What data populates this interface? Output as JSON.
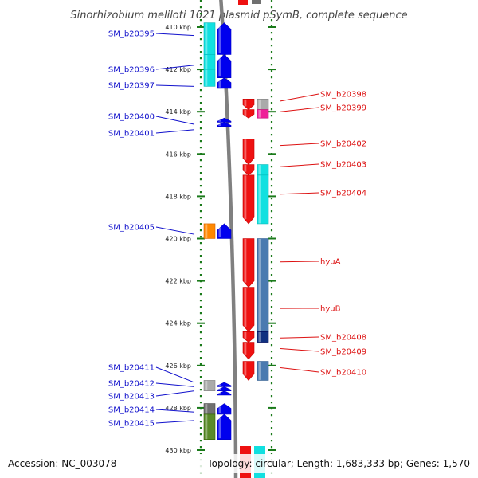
{
  "title": "Sinorhizobium meliloti 1021 plasmid pSymB, complete sequence",
  "accession_text": "Accession: NC_003078",
  "summary_text": "Topology: circular; Length: 1,683,333 bp; Genes: 1,570",
  "colors": {
    "left_label": "#1111cc",
    "right_label": "#dd1111",
    "backbone": "#808080",
    "ruler_dots": "#1a7a1a",
    "blue": "#0000ee",
    "cyan": "#11e0e0",
    "red": "#ee1111",
    "gray": "#aaaaaa",
    "magenta": "#ee2299",
    "orange": "#ff8800",
    "navy": "#103080",
    "steel": "#4a7ab0",
    "olive": "#5a8a2a",
    "darkgray": "#707070"
  },
  "ruler_ticks": [
    {
      "kbp": 410,
      "label": "410 kbp"
    },
    {
      "kbp": 412,
      "label": "412 kbp"
    },
    {
      "kbp": 414,
      "label": "414 kbp"
    },
    {
      "kbp": 416,
      "label": "416 kbp"
    },
    {
      "kbp": 418,
      "label": "418 kbp"
    },
    {
      "kbp": 420,
      "label": "420 kbp"
    },
    {
      "kbp": 422,
      "label": "422 kbp"
    },
    {
      "kbp": 424,
      "label": "424 kbp"
    },
    {
      "kbp": 426,
      "label": "426 kbp"
    },
    {
      "kbp": 428,
      "label": "428 kbp"
    },
    {
      "kbp": 430,
      "label": "430 kbp"
    }
  ],
  "left_labels": [
    {
      "name": "SM_b20395",
      "kbp": 410.4
    },
    {
      "name": "SM_b20396",
      "kbp": 411.8
    },
    {
      "name": "SM_b20397",
      "kbp": 412.8
    },
    {
      "name": "SM_b20400",
      "kbp": 414.6
    },
    {
      "name": "SM_b20401",
      "kbp": 414.85
    },
    {
      "name": "SM_b20405",
      "kbp": 419.8
    },
    {
      "name": "SM_b20411",
      "kbp": 426.8
    },
    {
      "name": "SM_b20412",
      "kbp": 427.0
    },
    {
      "name": "SM_b20413",
      "kbp": 427.2
    },
    {
      "name": "SM_b20414",
      "kbp": 428.2
    },
    {
      "name": "SM_b20415",
      "kbp": 428.6
    }
  ],
  "right_labels": [
    {
      "name": "SM_b20398",
      "kbp": 413.5
    },
    {
      "name": "SM_b20399",
      "kbp": 414.0
    },
    {
      "name": "SM_b20402",
      "kbp": 415.6
    },
    {
      "name": "SM_b20403",
      "kbp": 416.6
    },
    {
      "name": "SM_b20404",
      "kbp": 417.9
    },
    {
      "name": "hyuA",
      "kbp": 421.1
    },
    {
      "name": "hyuB",
      "kbp": 423.3
    },
    {
      "name": "SM_b20408",
      "kbp": 424.7
    },
    {
      "name": "SM_b20409",
      "kbp": 425.2
    },
    {
      "name": "SM_b20410",
      "kbp": 426.1
    }
  ],
  "genes": [
    {
      "name": "SM_b20395",
      "side": "left",
      "track": "outer",
      "start": 409.8,
      "end": 411.3,
      "color": "cyan",
      "arrow": "none"
    },
    {
      "name": "SM_b20396",
      "side": "left",
      "track": "outer",
      "start": 411.3,
      "end": 412.0,
      "color": "cyan",
      "arrow": "none"
    },
    {
      "name": "SM_b20397",
      "side": "left",
      "track": "outer",
      "start": 412.0,
      "end": 412.8,
      "color": "cyan",
      "arrow": "none"
    },
    {
      "name": "SM_b20395",
      "side": "left",
      "track": "inner",
      "start": 409.8,
      "end": 411.3,
      "color": "blue",
      "arrow": "up"
    },
    {
      "name": "SM_b20396",
      "side": "left",
      "track": "inner",
      "start": 411.3,
      "end": 412.4,
      "color": "blue",
      "arrow": "up"
    },
    {
      "name": "SM_b20397",
      "side": "left",
      "track": "inner",
      "start": 412.4,
      "end": 412.9,
      "color": "blue",
      "arrow": "up"
    },
    {
      "name": "SM_b20400",
      "side": "left",
      "track": "inner",
      "start": 414.3,
      "end": 414.5,
      "color": "blue",
      "arrow": "up"
    },
    {
      "name": "SM_b20401",
      "side": "left",
      "track": "inner",
      "start": 414.5,
      "end": 414.7,
      "color": "blue",
      "arrow": "up"
    },
    {
      "name": "SM_b20405",
      "side": "left",
      "track": "outer",
      "start": 419.3,
      "end": 420.0,
      "color": "orange",
      "arrow": "none"
    },
    {
      "name": "SM_b20405",
      "side": "left",
      "track": "inner",
      "start": 419.3,
      "end": 420.0,
      "color": "blue",
      "arrow": "up"
    },
    {
      "name": "SM_b20412",
      "side": "left",
      "track": "outer",
      "start": 426.7,
      "end": 427.2,
      "color": "gray",
      "arrow": "none"
    },
    {
      "name": "SM_b20411",
      "side": "left",
      "track": "inner",
      "start": 426.8,
      "end": 427.0,
      "color": "blue",
      "arrow": "up"
    },
    {
      "name": "SM_b20412",
      "side": "left",
      "track": "inner",
      "start": 427.0,
      "end": 427.2,
      "color": "blue",
      "arrow": "up"
    },
    {
      "name": "SM_b20413",
      "side": "left",
      "track": "inner",
      "start": 427.2,
      "end": 427.4,
      "color": "blue",
      "arrow": "up"
    },
    {
      "name": "SM_b20414",
      "side": "left",
      "track": "outer",
      "start": 427.8,
      "end": 428.3,
      "color": "darkgray",
      "arrow": "none"
    },
    {
      "name": "SM_b20415",
      "side": "left",
      "track": "outer",
      "start": 428.3,
      "end": 429.5,
      "color": "olive",
      "arrow": "none"
    },
    {
      "name": "SM_b20414",
      "side": "left",
      "track": "inner",
      "start": 427.8,
      "end": 428.3,
      "color": "blue",
      "arrow": "up"
    },
    {
      "name": "SM_b20415",
      "side": "left",
      "track": "inner",
      "start": 428.3,
      "end": 429.5,
      "color": "blue",
      "arrow": "up"
    },
    {
      "name": "SM_b20398",
      "side": "right",
      "track": "inner",
      "start": 413.4,
      "end": 413.9,
      "color": "red",
      "arrow": "down"
    },
    {
      "name": "SM_b20398",
      "side": "right",
      "track": "outer",
      "start": 413.4,
      "end": 413.9,
      "color": "gray",
      "arrow": "none"
    },
    {
      "name": "SM_b20399",
      "side": "right",
      "track": "inner",
      "start": 413.9,
      "end": 414.3,
      "color": "red",
      "arrow": "down"
    },
    {
      "name": "SM_b20399",
      "side": "right",
      "track": "outer",
      "start": 413.9,
      "end": 414.3,
      "color": "magenta",
      "arrow": "none"
    },
    {
      "name": "SM_b20402",
      "side": "right",
      "track": "inner",
      "start": 415.3,
      "end": 416.5,
      "color": "red",
      "arrow": "down"
    },
    {
      "name": "SM_b20403",
      "side": "right",
      "track": "inner",
      "start": 416.5,
      "end": 417.0,
      "color": "red",
      "arrow": "down"
    },
    {
      "name": "SM_b20403",
      "side": "right",
      "track": "outer",
      "start": 416.5,
      "end": 417.0,
      "color": "cyan",
      "arrow": "none"
    },
    {
      "name": "SM_b20404",
      "side": "right",
      "track": "inner",
      "start": 417.0,
      "end": 419.3,
      "color": "red",
      "arrow": "down"
    },
    {
      "name": "SM_b20404",
      "side": "right",
      "track": "outer",
      "start": 417.0,
      "end": 419.3,
      "color": "cyan",
      "arrow": "none"
    },
    {
      "name": "hyuA",
      "side": "right",
      "track": "inner",
      "start": 420.0,
      "end": 422.3,
      "color": "red",
      "arrow": "down"
    },
    {
      "name": "hyuA",
      "side": "right",
      "track": "outer",
      "start": 420.0,
      "end": 424.4,
      "color": "steel",
      "arrow": "none"
    },
    {
      "name": "hyuB",
      "side": "right",
      "track": "inner",
      "start": 422.3,
      "end": 424.4,
      "color": "red",
      "arrow": "down"
    },
    {
      "name": "SM_b20408",
      "side": "right",
      "track": "inner",
      "start": 424.4,
      "end": 424.9,
      "color": "red",
      "arrow": "down"
    },
    {
      "name": "SM_b20408",
      "side": "right",
      "track": "outer",
      "start": 424.4,
      "end": 424.9,
      "color": "navy",
      "arrow": "none"
    },
    {
      "name": "SM_b20409",
      "side": "right",
      "track": "inner",
      "start": 424.9,
      "end": 425.7,
      "color": "red",
      "arrow": "down"
    },
    {
      "name": "SM_b20410",
      "side": "right",
      "track": "inner",
      "start": 425.8,
      "end": 426.7,
      "color": "red",
      "arrow": "down"
    },
    {
      "name": "SM_b20410",
      "side": "right",
      "track": "outer",
      "start": 425.8,
      "end": 426.7,
      "color": "steel",
      "arrow": "none"
    }
  ]
}
